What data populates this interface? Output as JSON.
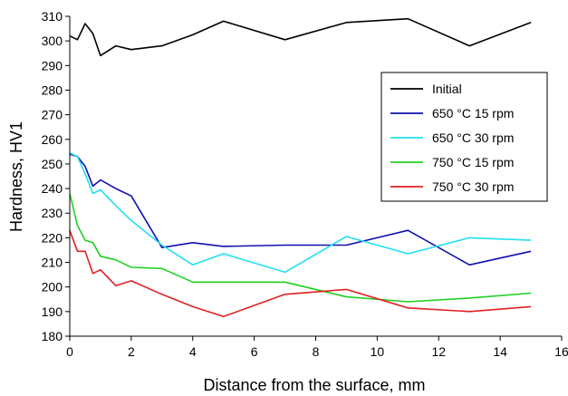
{
  "chart_data": {
    "type": "line",
    "title": "",
    "xlabel": "Distance from the surface, mm",
    "ylabel": "Hardness, HV1",
    "xlim": [
      0,
      16
    ],
    "ylim": [
      180,
      310
    ],
    "xticks": [
      0,
      2,
      4,
      6,
      8,
      10,
      12,
      14,
      16
    ],
    "yticks": [
      180,
      190,
      200,
      210,
      220,
      230,
      240,
      250,
      260,
      270,
      280,
      290,
      300,
      310
    ],
    "grid": false,
    "legend_position": "right",
    "series": [
      {
        "name": "Initial",
        "color": "#000000",
        "x": [
          0,
          0.25,
          0.5,
          0.75,
          1.0,
          1.5,
          2,
          3,
          4,
          5,
          7,
          9,
          11,
          13,
          15
        ],
        "y": [
          302,
          300.5,
          307,
          303,
          294,
          298,
          296.5,
          298,
          302.5,
          308,
          300.5,
          307.5,
          309,
          298,
          307.5
        ]
      },
      {
        "name": "650 °C 15 rpm",
        "color": "#1010b0",
        "x": [
          0,
          0.25,
          0.5,
          0.75,
          1.0,
          1.5,
          2,
          3,
          4,
          5,
          7,
          9,
          11,
          13,
          15
        ],
        "y": [
          254,
          253,
          249,
          241,
          243.5,
          240,
          237,
          216,
          218,
          216.5,
          217,
          217,
          223,
          209,
          214.5
        ]
      },
      {
        "name": "650 °C 30 rpm",
        "color": "#20e0f0",
        "x": [
          0,
          0.25,
          0.5,
          0.75,
          1.0,
          1.5,
          2,
          3,
          4,
          5,
          7,
          9,
          11,
          13,
          15
        ],
        "y": [
          254.5,
          253,
          246,
          238,
          239.5,
          233,
          227,
          217,
          209,
          213.5,
          206,
          220.5,
          213.5,
          220,
          219
        ]
      },
      {
        "name": "750 °C 15 rpm",
        "color": "#20d020",
        "x": [
          0,
          0.25,
          0.5,
          0.75,
          1.0,
          1.5,
          2,
          3,
          4,
          5,
          7,
          9,
          11,
          13,
          15
        ],
        "y": [
          238,
          225,
          219,
          218,
          212.5,
          211,
          208,
          207.5,
          202,
          202,
          202,
          196,
          194,
          195.5,
          197.5
        ]
      },
      {
        "name": "750 °C 30 rpm",
        "color": "#e02020",
        "x": [
          0,
          0.25,
          0.5,
          0.75,
          1.0,
          1.5,
          2,
          3,
          4,
          5,
          7,
          9,
          11,
          13,
          15
        ],
        "y": [
          223,
          214.5,
          214.5,
          205.5,
          207,
          200.5,
          202.5,
          197,
          192,
          188,
          197,
          199,
          191.5,
          190,
          192
        ]
      }
    ]
  }
}
